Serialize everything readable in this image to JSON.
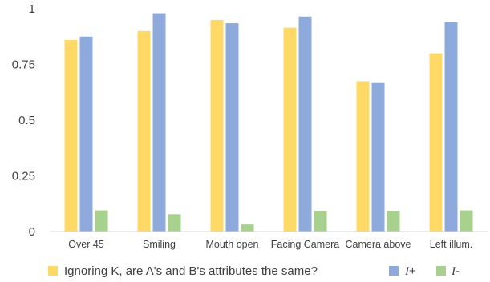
{
  "chart_data": {
    "type": "bar",
    "categories": [
      "Over 45",
      "Smiling",
      "Mouth open",
      "Facing Camera",
      "Camera above",
      "Left illum."
    ],
    "series": [
      {
        "name": "Ignoring K, are A's and B's attributes the same?",
        "color": "#FFD966",
        "values": [
          0.86,
          0.9,
          0.95,
          0.915,
          0.675,
          0.8
        ]
      },
      {
        "name_parts": [
          "I",
          "+"
        ],
        "color": "#8EA9DB",
        "values": [
          0.875,
          0.98,
          0.935,
          0.965,
          0.67,
          0.94
        ]
      },
      {
        "name_parts": [
          "I",
          "-"
        ],
        "color": "#A9D18E",
        "values": [
          0.095,
          0.078,
          0.032,
          0.092,
          0.092,
          0.095
        ]
      }
    ],
    "yticks": [
      "0",
      "0.25",
      "0.5",
      "0.75",
      "1"
    ],
    "ylim": [
      0,
      1
    ],
    "grid": false,
    "legend_position": "bottom"
  }
}
